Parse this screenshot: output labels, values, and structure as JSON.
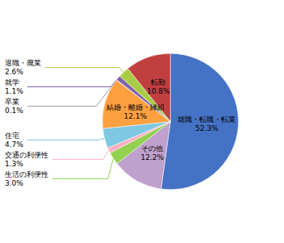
{
  "chart_data": {
    "type": "pie",
    "categories": [
      "就職・転職・転業",
      "その他",
      "生活の利便性",
      "交通の利便性",
      "住宅",
      "結婚・離婚・縁組",
      "卒業",
      "就学",
      "退職・廃業",
      "転勤"
    ],
    "values": [
      52.3,
      12.2,
      3.0,
      1.3,
      4.7,
      12.1,
      0.1,
      1.1,
      2.6,
      10.8
    ],
    "value_labels": [
      "52.3%",
      "12.2%",
      "3.0%",
      "1.3%",
      "4.7%",
      "12.1%",
      "0.1%",
      "1.1%",
      "2.6%",
      "10.8%"
    ],
    "colors": [
      "#4472C4",
      "#C0A0CC",
      "#92D050",
      "#FFB0C0",
      "#7EC8E3",
      "#FFA040",
      "#A0A0A0",
      "#8060AA",
      "#AACC44",
      "#C04040"
    ],
    "data_labels": true
  }
}
